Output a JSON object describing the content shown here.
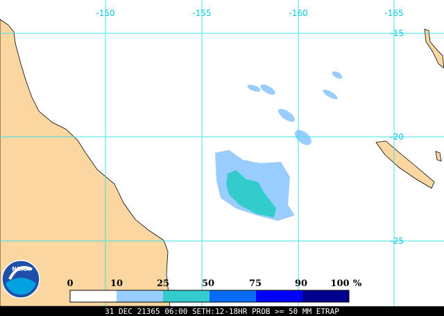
{
  "map": {
    "longitude_labels": [
      -150,
      -155,
      -160,
      -165
    ],
    "latitude_labels": [
      -15,
      -20,
      -25
    ]
  },
  "logo": {
    "text": "NOAA"
  },
  "legend": {
    "ticks": [
      0,
      10,
      25,
      50,
      75,
      90,
      100
    ],
    "unit": "%"
  },
  "caption": "31 DEC 21365 06:00 SETH:12-18HR PROB >= 50 MM ETRAP"
}
